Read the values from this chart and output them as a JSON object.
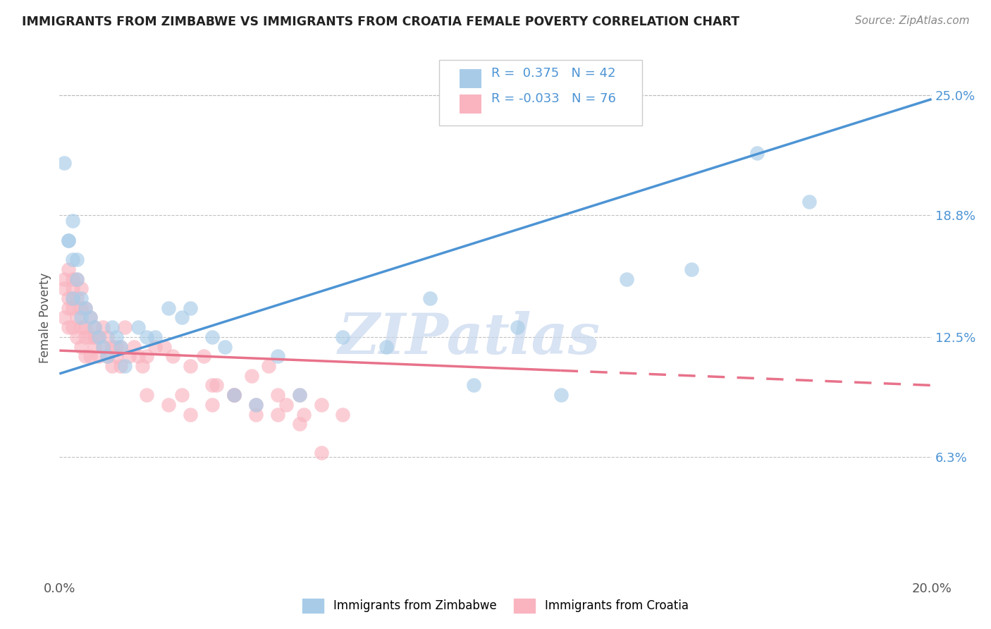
{
  "title": "IMMIGRANTS FROM ZIMBABWE VS IMMIGRANTS FROM CROATIA FEMALE POVERTY CORRELATION CHART",
  "source": "Source: ZipAtlas.com",
  "ylabel": "Female Poverty",
  "xlim": [
    0.0,
    0.2
  ],
  "ylim": [
    0.0,
    0.27
  ],
  "yticks": [
    0.063,
    0.125,
    0.188,
    0.25
  ],
  "ytick_labels": [
    "6.3%",
    "12.5%",
    "18.8%",
    "25.0%"
  ],
  "xticks": [
    0.0,
    0.05,
    0.1,
    0.15,
    0.2
  ],
  "xtick_labels": [
    "0.0%",
    "",
    "",
    "",
    "20.0%"
  ],
  "color_zimbabwe": "#a8cce8",
  "color_croatia": "#f9b4c0",
  "color_trendline_zimbabwe": "#4d94d4",
  "color_trendline_croatia": "#e8728a",
  "zimbabwe_x": [
    0.001,
    0.002,
    0.002,
    0.003,
    0.003,
    0.003,
    0.004,
    0.004,
    0.005,
    0.005,
    0.006,
    0.007,
    0.008,
    0.009,
    0.01,
    0.011,
    0.012,
    0.013,
    0.014,
    0.015,
    0.018,
    0.02,
    0.022,
    0.025,
    0.028,
    0.03,
    0.035,
    0.038,
    0.04,
    0.045,
    0.05,
    0.055,
    0.065,
    0.075,
    0.085,
    0.095,
    0.105,
    0.115,
    0.13,
    0.145,
    0.16,
    0.172
  ],
  "zimbabwe_y": [
    0.215,
    0.175,
    0.175,
    0.145,
    0.165,
    0.185,
    0.155,
    0.165,
    0.145,
    0.135,
    0.14,
    0.135,
    0.13,
    0.125,
    0.12,
    0.115,
    0.13,
    0.125,
    0.12,
    0.11,
    0.13,
    0.125,
    0.125,
    0.14,
    0.135,
    0.14,
    0.125,
    0.12,
    0.095,
    0.09,
    0.115,
    0.095,
    0.125,
    0.12,
    0.145,
    0.1,
    0.13,
    0.095,
    0.155,
    0.16,
    0.22,
    0.195
  ],
  "croatia_x": [
    0.001,
    0.001,
    0.001,
    0.002,
    0.002,
    0.002,
    0.002,
    0.003,
    0.003,
    0.003,
    0.003,
    0.003,
    0.004,
    0.004,
    0.004,
    0.004,
    0.005,
    0.005,
    0.005,
    0.005,
    0.006,
    0.006,
    0.006,
    0.006,
    0.007,
    0.007,
    0.007,
    0.008,
    0.008,
    0.008,
    0.009,
    0.009,
    0.01,
    0.01,
    0.011,
    0.011,
    0.012,
    0.012,
    0.013,
    0.013,
    0.014,
    0.014,
    0.015,
    0.016,
    0.017,
    0.018,
    0.019,
    0.02,
    0.022,
    0.024,
    0.026,
    0.028,
    0.03,
    0.033,
    0.036,
    0.04,
    0.044,
    0.048,
    0.052,
    0.056,
    0.02,
    0.025,
    0.03,
    0.035,
    0.04,
    0.045,
    0.05,
    0.055,
    0.06,
    0.035,
    0.04,
    0.045,
    0.05,
    0.055,
    0.06,
    0.065
  ],
  "croatia_y": [
    0.15,
    0.135,
    0.155,
    0.145,
    0.13,
    0.14,
    0.16,
    0.155,
    0.145,
    0.13,
    0.14,
    0.15,
    0.125,
    0.135,
    0.145,
    0.155,
    0.13,
    0.12,
    0.14,
    0.15,
    0.13,
    0.14,
    0.115,
    0.125,
    0.135,
    0.125,
    0.115,
    0.13,
    0.12,
    0.125,
    0.125,
    0.115,
    0.13,
    0.12,
    0.125,
    0.115,
    0.12,
    0.11,
    0.12,
    0.115,
    0.11,
    0.12,
    0.13,
    0.115,
    0.12,
    0.115,
    0.11,
    0.115,
    0.12,
    0.12,
    0.115,
    0.095,
    0.11,
    0.115,
    0.1,
    0.095,
    0.105,
    0.11,
    0.09,
    0.085,
    0.095,
    0.09,
    0.085,
    0.09,
    0.095,
    0.09,
    0.085,
    0.095,
    0.065,
    0.1,
    0.095,
    0.085,
    0.095,
    0.08,
    0.09,
    0.085
  ],
  "zim_trend": [
    0.106,
    0.248
  ],
  "cro_trend": [
    0.118,
    0.1
  ],
  "cro_trend_dashed_start": 0.115,
  "watermark_text": "ZIPatlas",
  "background_color": "#ffffff",
  "grid_color": "#bbbbbb"
}
